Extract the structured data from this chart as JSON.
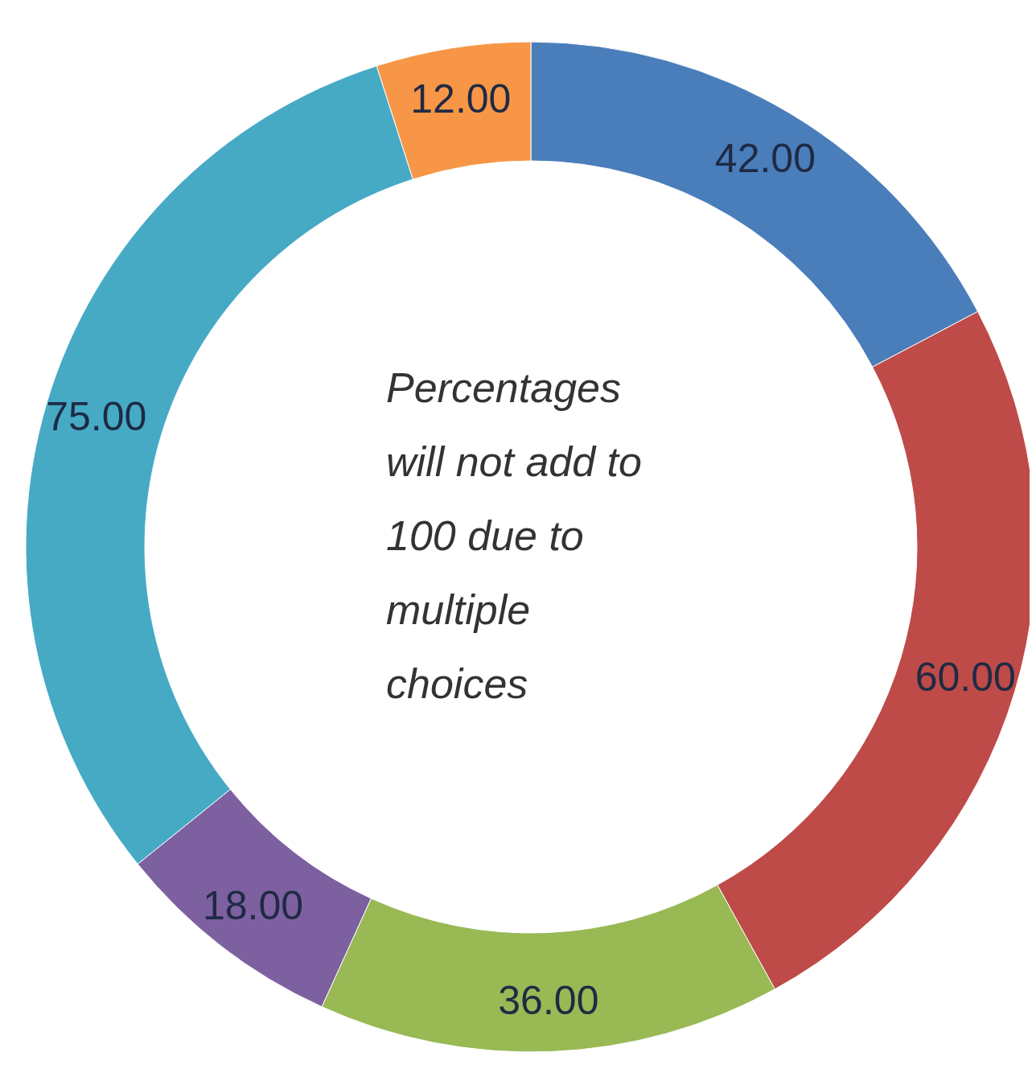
{
  "chart_data": {
    "type": "donut",
    "categories": [
      null,
      null,
      null,
      null,
      null,
      null
    ],
    "values": [
      42,
      60,
      36,
      18,
      75,
      12
    ],
    "colors": [
      "#4a7ebb",
      "#be4b48",
      "#98b954",
      "#7d60a0",
      "#46aac5",
      "#f79646"
    ],
    "value_labels": [
      "42.00",
      "60.00",
      "36.00",
      "18.00",
      "75.00",
      "12.00"
    ],
    "annotations": [
      "Percentages will not add to 100 due to multiple choices"
    ]
  }
}
